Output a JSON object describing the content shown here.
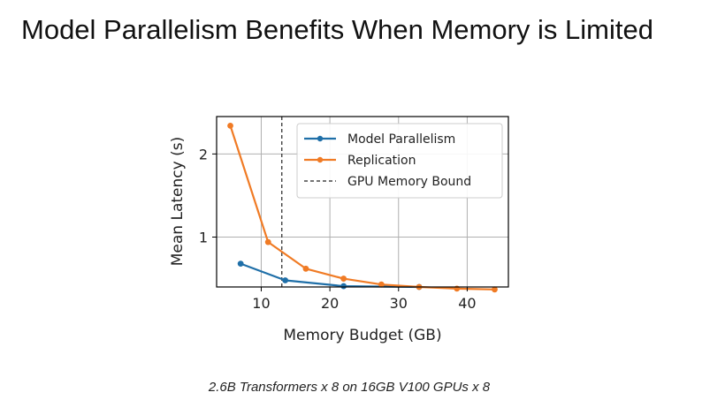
{
  "slide": {
    "title": "Model Parallelism Benefits When Memory is Limited",
    "caption": "2.6B Transformers x 8 on 16GB V100 GPUs x 8"
  },
  "chart_data": {
    "type": "line",
    "title": "",
    "xlabel": "Memory Budget (GB)",
    "ylabel": "Mean Latency (s)",
    "xlim": [
      3.5,
      46
    ],
    "ylim": [
      0.4,
      2.45
    ],
    "xticks": [
      10,
      20,
      30,
      40
    ],
    "yticks": [
      1,
      2
    ],
    "grid": true,
    "legend_placement": "top-right",
    "colors": {
      "model_parallelism": "#1f6fa8",
      "replication": "#f07b25",
      "memory_bound": "#222222"
    },
    "series": [
      {
        "name": "Model Parallelism",
        "color": "#1f6fa8",
        "x": [
          7,
          13.5,
          22,
          33
        ],
        "y": [
          0.68,
          0.48,
          0.41,
          0.4
        ]
      },
      {
        "name": "Replication",
        "color": "#f07b25",
        "x": [
          5.5,
          11,
          16.5,
          22,
          27.5,
          33,
          38.5,
          44
        ],
        "y": [
          2.34,
          0.94,
          0.62,
          0.5,
          0.43,
          0.4,
          0.38,
          0.37
        ]
      }
    ],
    "reference_lines": [
      {
        "name": "GPU Memory Bound",
        "orientation": "vertical",
        "x": 13,
        "style": "dashed"
      }
    ]
  }
}
